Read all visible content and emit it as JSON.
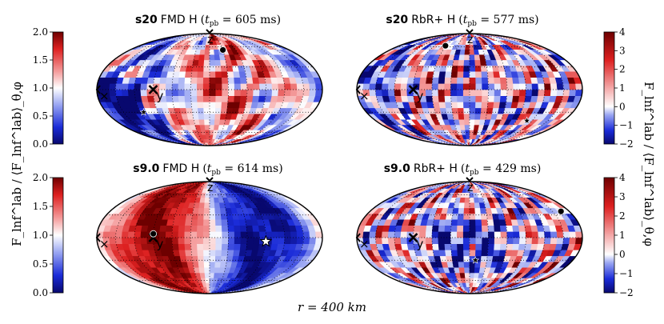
{
  "figure": {
    "bottom_label": "r = 400 km",
    "left_ylabel": "F_lnf^lab / ⟨F_lnf^lab⟩_θ,φ",
    "right_ylabel": "F_lnf^lab / ⟨F_lnf^lab⟩_θ,φ"
  },
  "chart_data": [
    {
      "type": "heatmap",
      "projection": "mollweide",
      "title_bold": "s20",
      "title_rest": "FMD H",
      "tpb_ms": "605",
      "title": "s20 FMD H (t_pb = 605 ms)",
      "colorbar": "left-top",
      "pattern": "patchy-dipole",
      "axis_markers": [
        "z",
        "y",
        "x"
      ],
      "markers": [
        {
          "kind": "dot",
          "lon": 30,
          "lat": 55
        },
        {
          "kind": "star",
          "lon": -115,
          "lat": -30
        }
      ]
    },
    {
      "type": "heatmap",
      "projection": "mollweide",
      "title_bold": "s20",
      "title_rest": "RbR+ H",
      "tpb_ms": "577",
      "title": "s20 RbR+ H (t_pb = 577 ms)",
      "colorbar": "right-top",
      "pattern": "patchy",
      "axis_markers": [
        "z",
        "y",
        "x"
      ],
      "markers": [
        {
          "kind": "dot",
          "lon": -62,
          "lat": 62
        },
        {
          "kind": "star",
          "lon": 110,
          "lat": -42
        }
      ]
    },
    {
      "type": "heatmap",
      "projection": "mollweide",
      "title_bold": "s9.0",
      "title_rest": "FMD H",
      "tpb_ms": "614",
      "title": "s9.0 FMD H (t_pb = 614 ms)",
      "colorbar": "left-bottom",
      "pattern": "dipole",
      "axis_markers": [
        "z",
        "y",
        "x"
      ],
      "markers": [
        {
          "kind": "dot",
          "lon": -90,
          "lat": 5
        },
        {
          "kind": "star",
          "lon": 90,
          "lat": -5
        }
      ]
    },
    {
      "type": "heatmap",
      "projection": "mollweide",
      "title_bold": "s9.0",
      "title_rest": "RbR+ H",
      "tpb_ms": "429",
      "title": "s9.0 RbR+ H (t_pb = 429 ms)",
      "colorbar": "right-bottom",
      "pattern": "patchy",
      "axis_markers": [
        "z",
        "y",
        "x"
      ],
      "markers": [
        {
          "kind": "dot",
          "lon": 165,
          "lat": 35
        },
        {
          "kind": "star",
          "lon": 10,
          "lat": -30
        }
      ]
    }
  ],
  "colorbars": {
    "left": {
      "min": 0.0,
      "max": 2.0,
      "ticks": [
        "0.0",
        "0.5",
        "1.0",
        "1.5",
        "2.0"
      ],
      "tick_values": [
        0,
        0.5,
        1.0,
        1.5,
        2.0
      ]
    },
    "right": {
      "min": -2,
      "max": 4,
      "ticks": [
        "−2",
        "−1",
        "0",
        "1",
        "2",
        "3",
        "4"
      ],
      "tick_values": [
        -2,
        -1,
        0,
        1,
        2,
        3,
        4
      ]
    }
  },
  "colors": {
    "low": "#0a0a9a",
    "mid": "#ffffff",
    "high": "#8b0000"
  }
}
